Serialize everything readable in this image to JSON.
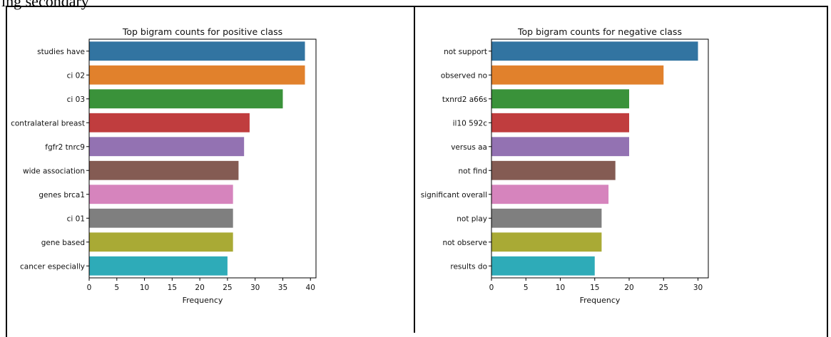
{
  "caption": "ing secondary",
  "chart_data": [
    {
      "type": "bar",
      "orientation": "horizontal",
      "title": "Top bigram counts for positive class",
      "xlabel": "Frequency",
      "ylabel": "",
      "xlim": [
        0,
        41
      ],
      "xticks": [
        0,
        5,
        10,
        15,
        20,
        25,
        30,
        35,
        40
      ],
      "categories": [
        "studies have",
        "ci 02",
        "ci 03",
        "contralateral breast",
        "fgfr2 tnrc9",
        "wide association",
        "genes brca1",
        "ci 01",
        "gene based",
        "cancer especially"
      ],
      "values": [
        39,
        39,
        35,
        29,
        28,
        27,
        26,
        26,
        26,
        25
      ],
      "colors": [
        "#3274a1",
        "#e1812c",
        "#3a923a",
        "#c03d3e",
        "#9372b2",
        "#845b53",
        "#d684bd",
        "#7f7f7f",
        "#a9aa35",
        "#2eabb8"
      ],
      "grid": false
    },
    {
      "type": "bar",
      "orientation": "horizontal",
      "title": "Top bigram counts for negative class",
      "xlabel": "Frequency",
      "ylabel": "",
      "xlim": [
        0,
        31.5
      ],
      "xticks": [
        0,
        5,
        10,
        15,
        20,
        25,
        30
      ],
      "categories": [
        "not support",
        "observed no",
        "txnrd2 a66s",
        "il10 592c",
        "versus aa",
        "not find",
        "significant overall",
        "not play",
        "not observe",
        "results do"
      ],
      "values": [
        30,
        25,
        20,
        20,
        20,
        18,
        17,
        16,
        16,
        15
      ],
      "colors": [
        "#3274a1",
        "#e1812c",
        "#3a923a",
        "#c03d3e",
        "#9372b2",
        "#845b53",
        "#d684bd",
        "#7f7f7f",
        "#a9aa35",
        "#2eabb8"
      ],
      "grid": false
    }
  ]
}
